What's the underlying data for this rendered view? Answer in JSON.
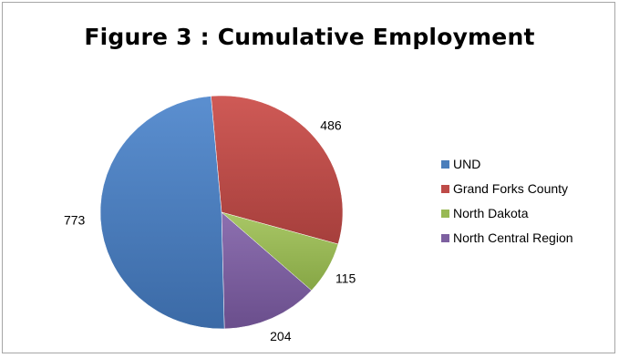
{
  "chart_data": {
    "type": "pie",
    "title": "Figure 3 : Cumulative Employment",
    "categories": [
      "UND",
      "Grand Forks County",
      "North Dakota",
      "North Central Region"
    ],
    "values": [
      773,
      486,
      115,
      204
    ],
    "colors": [
      "#4a7ebb",
      "#be4b48",
      "#98b954",
      "#7d60a0"
    ],
    "legend_position": "right"
  }
}
